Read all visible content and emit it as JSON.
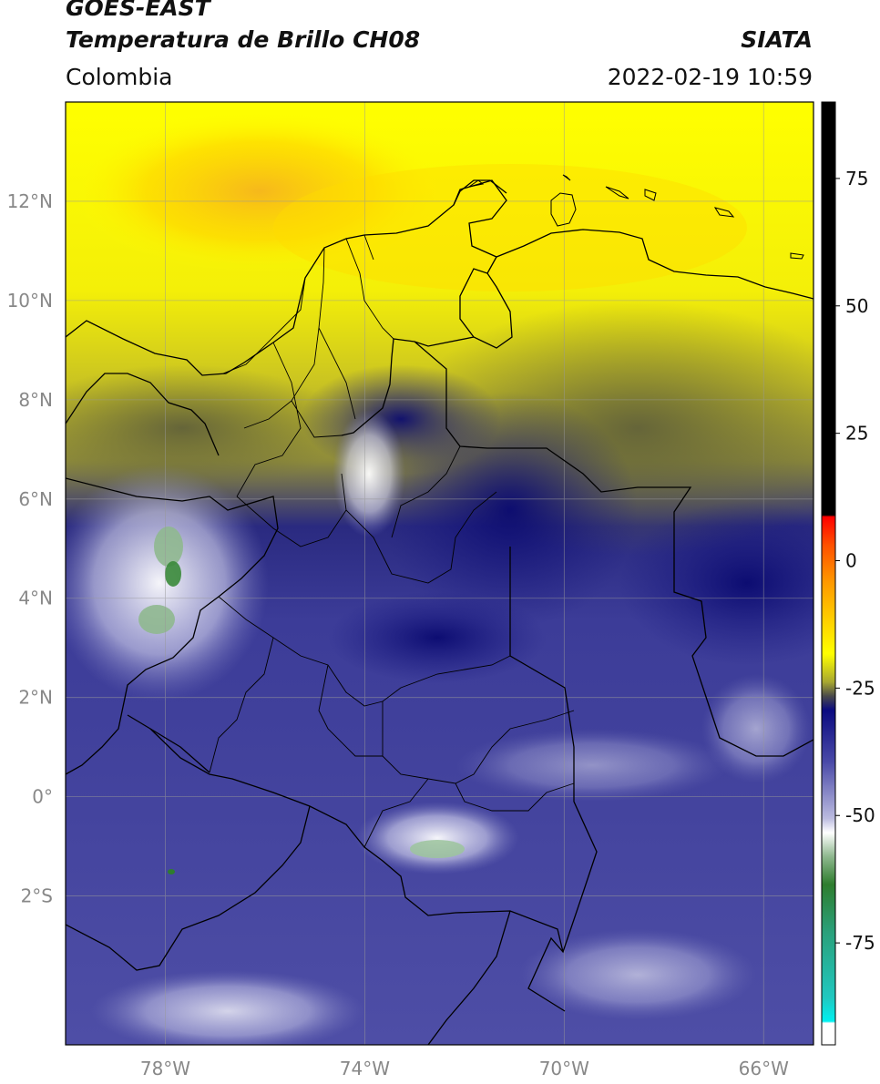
{
  "header": {
    "satellite": "GOES-EAST",
    "product": "Temperatura de Brillo CH08",
    "region": "Colombia",
    "agency": "SIATA",
    "datetime": "2022-02-19 10:59"
  },
  "map": {
    "lon_range": [
      -80,
      -65
    ],
    "lat_range": [
      -5,
      14
    ],
    "lat_ticks": [
      {
        "value": 12,
        "label": "12°N"
      },
      {
        "value": 10,
        "label": "10°N"
      },
      {
        "value": 8,
        "label": "8°N"
      },
      {
        "value": 6,
        "label": "6°N"
      },
      {
        "value": 4,
        "label": "4°N"
      },
      {
        "value": 2,
        "label": "2°N"
      },
      {
        "value": 0,
        "label": "0°"
      },
      {
        "value": -2,
        "label": "2°S"
      }
    ],
    "lon_ticks": [
      {
        "value": -78,
        "label": "78°W"
      },
      {
        "value": -74,
        "label": "74°W"
      },
      {
        "value": -70,
        "label": "70°W"
      },
      {
        "value": -66,
        "label": "66°W"
      }
    ],
    "grid": true
  },
  "colorbar": {
    "range": [
      -95,
      90
    ],
    "ticks": [
      {
        "value": 75,
        "label": "75"
      },
      {
        "value": 50,
        "label": "50"
      },
      {
        "value": 25,
        "label": "25"
      },
      {
        "value": 0,
        "label": "0"
      },
      {
        "value": -25,
        "label": "-25"
      },
      {
        "value": -50,
        "label": "-50"
      },
      {
        "value": -75,
        "label": "-75"
      }
    ],
    "colors": {
      "black": "#000000",
      "red": "#ff0000",
      "orange": "#ff8c00",
      "yellow": "#ffff00",
      "olive": "#6b6b23",
      "navy": "#0b0b80",
      "periwinkle": "#5a5ab0",
      "white": "#ffffff",
      "green": "#2f7f2f",
      "teal": "#20b2aa",
      "cyan": "#00e5e5"
    }
  }
}
